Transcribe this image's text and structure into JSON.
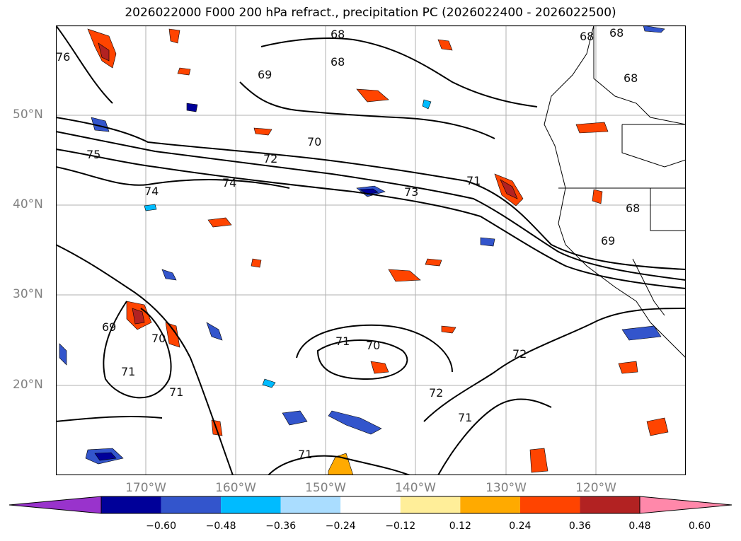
{
  "title": "2026022000 F000 200 hPa refract., precipitation PC (2026022400 - 2026022500)",
  "lat_labels": [
    "50°N",
    "40°N",
    "30°N",
    "20°N"
  ],
  "lon_labels": [
    "170°W",
    "160°W",
    "150°W",
    "140°W",
    "130°W",
    "120°W"
  ],
  "colorbar": {
    "colors": [
      "#9933cc",
      "#000099",
      "#3355cc",
      "#00bbff",
      "#aaddff",
      "#ffffff",
      "#ffee99",
      "#ffaa00",
      "#ff4400",
      "#b22222",
      "#ff88aa"
    ],
    "ticks": [
      "−0.60",
      "−0.48",
      "−0.36",
      "−0.24",
      "−0.12",
      "0.12",
      "0.24",
      "0.36",
      "0.48",
      "0.60"
    ]
  },
  "contour_labels": [
    "76",
    "75",
    "74",
    "74",
    "72",
    "70",
    "73",
    "71",
    "68",
    "68",
    "68",
    "69",
    "68",
    "68",
    "68",
    "69",
    "69",
    "70",
    "71",
    "70",
    "71",
    "72",
    "72",
    "71",
    "71",
    "71"
  ]
}
